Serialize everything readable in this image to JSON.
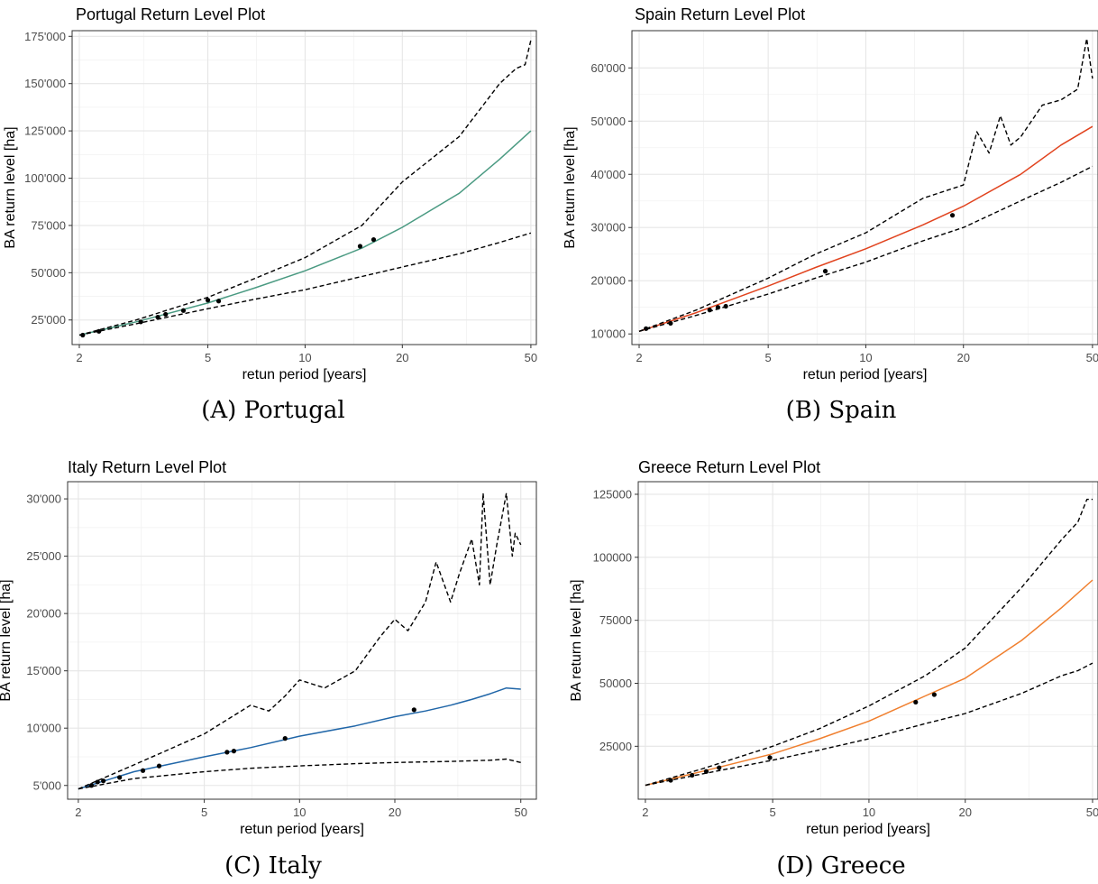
{
  "captions": [
    "(A) Portugal",
    "(B) Spain",
    "(C) Italy",
    "(D) Greece"
  ],
  "chart_data": [
    {
      "type": "line",
      "title": "Portugal Return Level Plot",
      "xlabel": "retun period [years]",
      "ylabel": "BA return level [ha]",
      "x_scale": "log",
      "xlim": [
        1.9,
        52
      ],
      "ylim": [
        12000,
        178000
      ],
      "x_ticks": [
        2,
        5,
        10,
        20,
        50
      ],
      "y_ticks": [
        25000,
        50000,
        75000,
        100000,
        125000,
        150000,
        175000
      ],
      "y_tick_labels": [
        "25'000",
        "50'000",
        "75'000",
        "100'000",
        "125'000",
        "150'000",
        "175'000"
      ],
      "grid": true,
      "legend": "none",
      "colors": {
        "fit": "#4a9a82",
        "ci": "#000000",
        "points": "#000000"
      },
      "series": [
        {
          "role": "fit",
          "x": [
            2,
            3,
            5,
            7,
            10,
            15,
            20,
            30,
            40,
            50
          ],
          "y": [
            17000,
            24000,
            34000,
            42000,
            51000,
            63000,
            74000,
            92000,
            110000,
            125000
          ]
        },
        {
          "role": "ci-upper",
          "x": [
            2,
            3,
            5,
            7,
            10,
            15,
            20,
            30,
            40,
            45,
            48,
            50
          ],
          "y": [
            17000,
            25000,
            37000,
            47000,
            58000,
            75000,
            98000,
            122000,
            150000,
            158000,
            160000,
            173000
          ]
        },
        {
          "role": "ci-lower",
          "x": [
            2,
            3,
            5,
            7,
            10,
            15,
            20,
            30,
            40,
            50
          ],
          "y": [
            17000,
            23000,
            31000,
            36000,
            41000,
            48000,
            53000,
            60000,
            66000,
            71000
          ]
        },
        {
          "role": "points",
          "x": [
            2.05,
            2.3,
            3.1,
            3.5,
            3.7,
            4.2,
            5.0,
            5.4,
            14.8,
            16.3
          ],
          "y": [
            17000,
            19000,
            24000,
            26500,
            28000,
            30000,
            35500,
            35000,
            64000,
            67500
          ]
        }
      ]
    },
    {
      "type": "line",
      "title": "Spain Return Level Plot",
      "xlabel": "retun period [years]",
      "ylabel": "BA return level [ha]",
      "x_scale": "log",
      "xlim": [
        1.9,
        52
      ],
      "ylim": [
        8000,
        67000
      ],
      "x_ticks": [
        2,
        5,
        10,
        20,
        50
      ],
      "y_ticks": [
        10000,
        20000,
        30000,
        40000,
        50000,
        60000
      ],
      "y_tick_labels": [
        "10'000",
        "20'000",
        "30'000",
        "40'000",
        "50'000",
        "60'000"
      ],
      "grid": true,
      "legend": "none",
      "colors": {
        "fit": "#e1431e",
        "ci": "#000000",
        "points": "#000000"
      },
      "series": [
        {
          "role": "fit",
          "x": [
            2,
            3,
            5,
            7,
            10,
            15,
            20,
            30,
            40,
            50
          ],
          "y": [
            10500,
            14000,
            19000,
            22500,
            26000,
            30500,
            34000,
            40000,
            45500,
            49000
          ]
        },
        {
          "role": "ci-upper",
          "x": [
            2,
            3,
            5,
            7,
            10,
            15,
            20,
            22,
            24,
            26,
            28,
            30,
            35,
            40,
            45,
            48,
            50
          ],
          "y": [
            10500,
            14500,
            20500,
            25000,
            29000,
            35500,
            38000,
            48000,
            44000,
            51000,
            45500,
            47000,
            53000,
            54000,
            56000,
            65500,
            58000
          ]
        },
        {
          "role": "ci-lower",
          "x": [
            2,
            3,
            5,
            7,
            10,
            15,
            20,
            30,
            40,
            50
          ],
          "y": [
            10500,
            13500,
            17500,
            20500,
            23500,
            27500,
            30000,
            35000,
            38500,
            41500
          ]
        },
        {
          "role": "points",
          "x": [
            2.1,
            2.5,
            3.3,
            3.5,
            3.7,
            7.5,
            18.5
          ],
          "y": [
            11000,
            12000,
            14500,
            15000,
            15200,
            21800,
            32300
          ]
        }
      ]
    },
    {
      "type": "line",
      "title": "Italy Return Level Plot",
      "xlabel": "retun period [years]",
      "ylabel": "BA return level [ha]",
      "x_scale": "log",
      "xlim": [
        1.85,
        56
      ],
      "ylim": [
        3800,
        31500
      ],
      "x_ticks": [
        2,
        5,
        10,
        20,
        50
      ],
      "y_ticks": [
        5000,
        10000,
        15000,
        20000,
        25000,
        30000
      ],
      "y_tick_labels": [
        "5'000",
        "10'000",
        "15'000",
        "20'000",
        "25'000",
        "30'000"
      ],
      "grid": true,
      "legend": "none",
      "colors": {
        "fit": "#2066a8",
        "ci": "#000000",
        "points": "#000000"
      },
      "series": [
        {
          "role": "fit",
          "x": [
            2,
            3,
            5,
            7,
            10,
            15,
            20,
            25,
            30,
            35,
            40,
            45,
            50
          ],
          "y": [
            4700,
            6200,
            7500,
            8300,
            9300,
            10200,
            11000,
            11500,
            12000,
            12500,
            13000,
            13500,
            13400
          ]
        },
        {
          "role": "ci-upper",
          "x": [
            2,
            3,
            5,
            7,
            8,
            9,
            10,
            12,
            15,
            18,
            20,
            22,
            25,
            27,
            30,
            32,
            35,
            37,
            38,
            40,
            42,
            44,
            45,
            47,
            48,
            50
          ],
          "y": [
            4700,
            6800,
            9500,
            12000,
            11500,
            12800,
            14200,
            13500,
            15000,
            18000,
            19500,
            18500,
            21000,
            24500,
            21000,
            23500,
            26500,
            22500,
            30500,
            22500,
            26000,
            29000,
            30500,
            25000,
            27000,
            26000
          ]
        },
        {
          "role": "ci-lower",
          "x": [
            2,
            3,
            5,
            7,
            10,
            15,
            20,
            30,
            40,
            45,
            50
          ],
          "y": [
            4700,
            5600,
            6200,
            6500,
            6700,
            6900,
            7000,
            7100,
            7200,
            7300,
            7000
          ]
        },
        {
          "role": "points",
          "x": [
            2.2,
            2.3,
            2.4,
            2.7,
            3.2,
            3.6,
            5.9,
            6.2,
            9.0,
            23.0
          ],
          "y": [
            5000,
            5300,
            5400,
            5700,
            6300,
            6700,
            7900,
            8000,
            9100,
            11600
          ]
        }
      ]
    },
    {
      "type": "line",
      "title": "Greece Return Level Plot",
      "xlabel": "retun period [years]",
      "ylabel": "BA return level [ha]",
      "x_scale": "log",
      "xlim": [
        1.9,
        52
      ],
      "ylim": [
        4000,
        130000
      ],
      "x_ticks": [
        2,
        5,
        10,
        20,
        50
      ],
      "y_ticks": [
        25000,
        50000,
        75000,
        100000,
        125000
      ],
      "y_tick_labels": [
        "25000",
        "50000",
        "75000",
        "100000",
        "125000"
      ],
      "grid": true,
      "legend": "none",
      "colors": {
        "fit": "#f07f2e",
        "ci": "#000000",
        "points": "#000000"
      },
      "series": [
        {
          "role": "fit",
          "x": [
            2,
            3,
            5,
            7,
            10,
            15,
            20,
            30,
            40,
            50
          ],
          "y": [
            9500,
            15000,
            22000,
            28000,
            35000,
            45000,
            52000,
            67000,
            80000,
            91000
          ]
        },
        {
          "role": "ci-upper",
          "x": [
            2,
            3,
            5,
            7,
            10,
            15,
            20,
            30,
            40,
            45,
            48,
            50
          ],
          "y": [
            9500,
            16000,
            25000,
            32000,
            41000,
            53000,
            64000,
            88000,
            107000,
            114000,
            123000,
            123000
          ]
        },
        {
          "role": "ci-lower",
          "x": [
            2,
            3,
            5,
            7,
            10,
            15,
            20,
            30,
            40,
            45,
            50
          ],
          "y": [
            9500,
            14000,
            19500,
            23500,
            28000,
            34000,
            38000,
            46000,
            53000,
            55000,
            58000
          ]
        },
        {
          "role": "points",
          "x": [
            2.4,
            2.8,
            3.1,
            3.4,
            4.9,
            14.0,
            16.0
          ],
          "y": [
            11500,
            13500,
            15000,
            16500,
            20500,
            42500,
            45500
          ]
        }
      ]
    }
  ]
}
